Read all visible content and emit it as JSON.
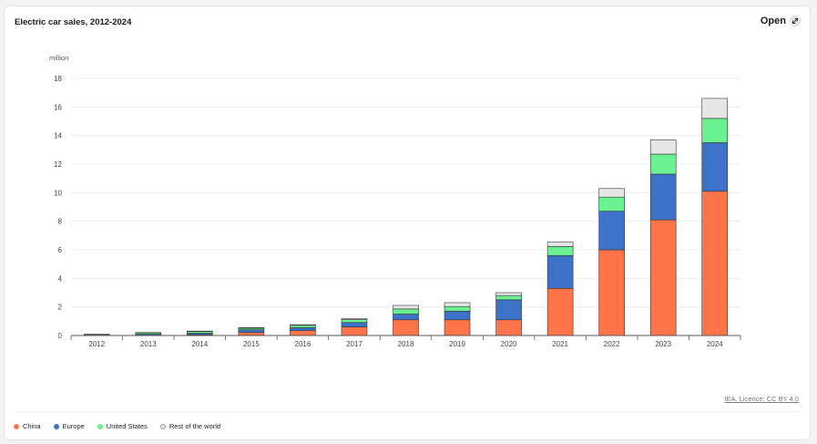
{
  "header": {
    "title": "Electric car sales, 2012-2024",
    "open_label": "Open"
  },
  "footer": {
    "licence": "IEA. Licence: CC BY 4.0"
  },
  "colors": {
    "china": "#ff7448",
    "europe": "#3c72c7",
    "us": "#6af291",
    "row": "#e6e6e6"
  },
  "chart_data": {
    "type": "bar",
    "stacked": true,
    "title": "Electric car sales, 2012-2024",
    "ylabel": "million",
    "ylim": [
      0,
      18
    ],
    "yticks": [
      0,
      2,
      4,
      6,
      8,
      10,
      12,
      14,
      16,
      18
    ],
    "grid": true,
    "legend_position": "bottom-left",
    "categories": [
      "2012",
      "2013",
      "2014",
      "2015",
      "2016",
      "2017",
      "2018",
      "2019",
      "2020",
      "2021",
      "2022",
      "2023",
      "2024"
    ],
    "series": [
      {
        "name": "China",
        "color": "#ff7448",
        "values": [
          0.01,
          0.02,
          0.06,
          0.21,
          0.34,
          0.6,
          1.1,
          1.1,
          1.1,
          3.3,
          6.0,
          8.1,
          10.1
        ]
      },
      {
        "name": "Europe",
        "color": "#3c72c7",
        "values": [
          0.02,
          0.07,
          0.1,
          0.19,
          0.21,
          0.31,
          0.4,
          0.6,
          1.4,
          2.3,
          2.7,
          3.2,
          3.4
        ]
      },
      {
        "name": "United States",
        "color": "#6af291",
        "values": [
          0.05,
          0.1,
          0.12,
          0.11,
          0.16,
          0.2,
          0.36,
          0.33,
          0.3,
          0.63,
          0.99,
          1.4,
          1.7
        ]
      },
      {
        "name": "Rest of the world",
        "color": "#e6e6e6",
        "values": [
          0.01,
          0.02,
          0.03,
          0.04,
          0.05,
          0.07,
          0.25,
          0.27,
          0.2,
          0.3,
          0.6,
          1.0,
          1.4
        ]
      }
    ]
  }
}
